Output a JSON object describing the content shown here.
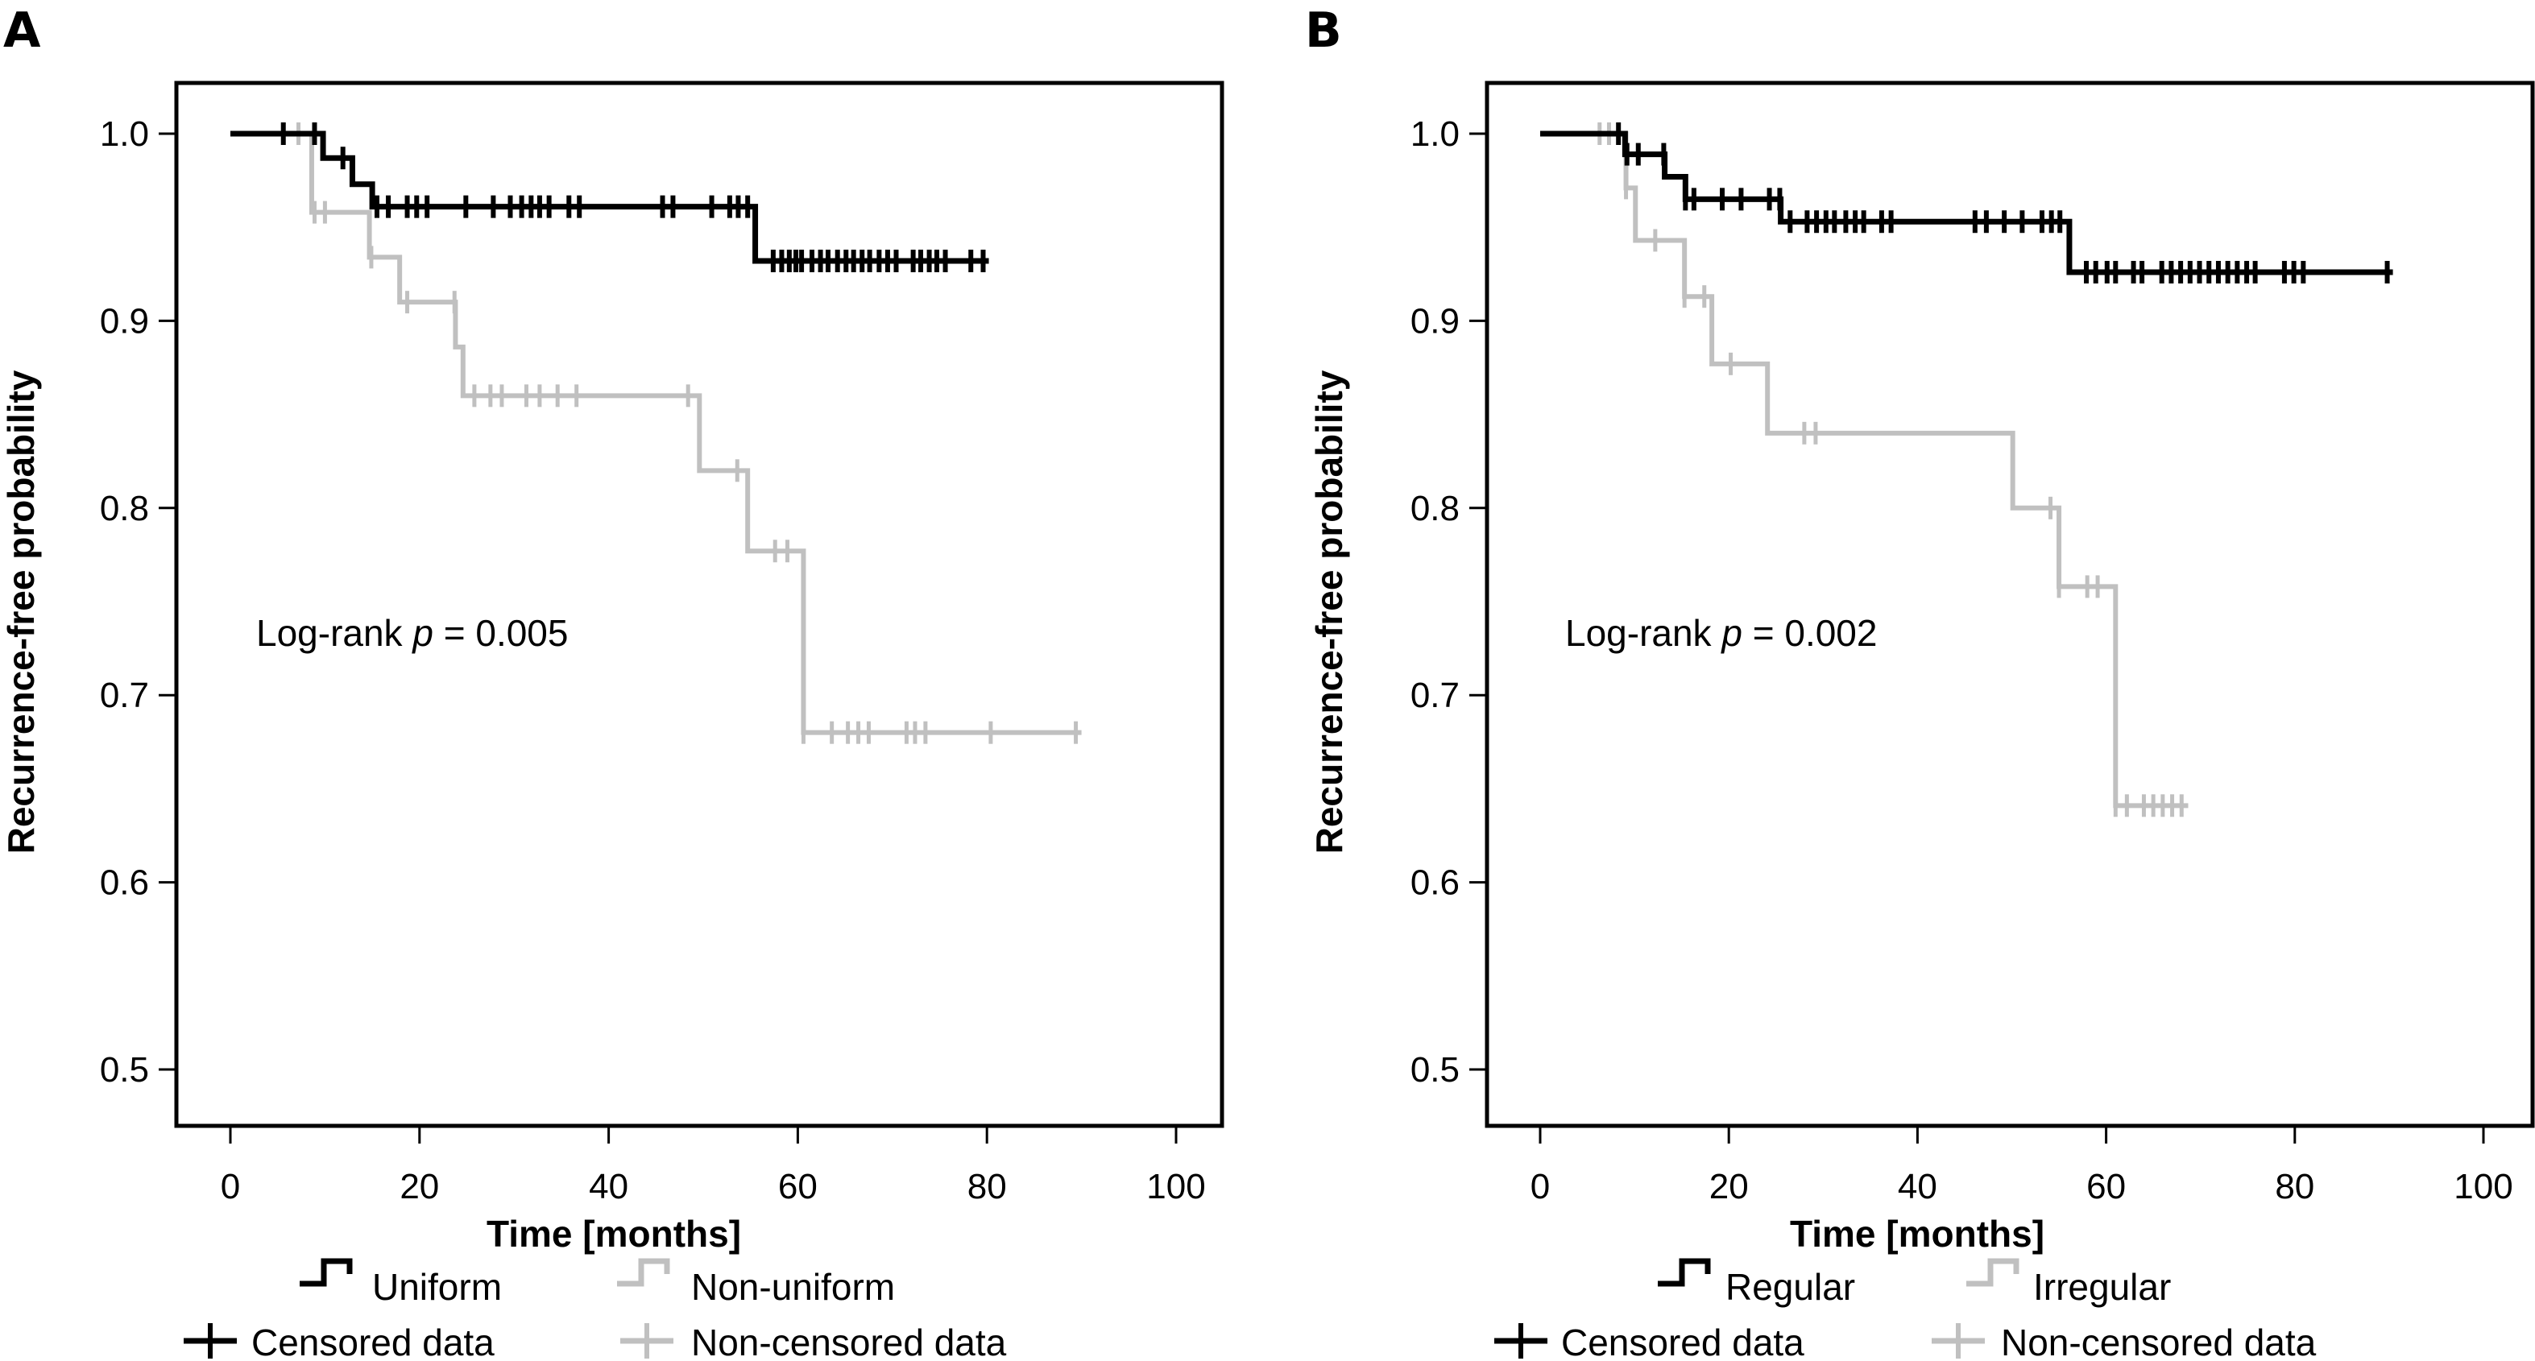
{
  "figure": {
    "panels": [
      "A",
      "B"
    ]
  },
  "chart_data": [
    {
      "type": "line",
      "subtype": "kaplan-meier",
      "panel_label": "A",
      "title": "",
      "xlabel": "Time [months]",
      "ylabel": "Recurrence-free probability",
      "xlim": [
        0,
        100
      ],
      "ylim": [
        0.5,
        1.0
      ],
      "xticks": [
        0,
        20,
        40,
        60,
        80,
        100
      ],
      "xtick_labels": [
        "0",
        "20",
        "40",
        "60",
        "80",
        "100"
      ],
      "yticks": [
        0.5,
        0.6,
        0.7,
        0.8,
        0.9,
        1.0
      ],
      "ytick_labels": [
        "0.5",
        "0.6",
        "0.7",
        "0.8",
        "0.9",
        "1.0"
      ],
      "grid": false,
      "annotation": {
        "prefix": "Log-rank ",
        "italic": "p",
        "suffix": " = 0.005"
      },
      "legend_position": "bottom",
      "legend": [
        {
          "label": "Uniform",
          "kind": "step",
          "series": 0
        },
        {
          "label": "Non-uniform",
          "kind": "step",
          "series": 1
        },
        {
          "label": "Censored data",
          "kind": "plus",
          "series": 0
        },
        {
          "label": "Non-censored data",
          "kind": "plus",
          "series": 1
        }
      ],
      "series": [
        {
          "name": "Uniform",
          "color": "#000000",
          "steps": [
            [
              0,
              1.0
            ],
            [
              9.8,
              0.987
            ],
            [
              12.9,
              0.973
            ],
            [
              15.0,
              0.961
            ],
            [
              55.5,
              0.932
            ]
          ],
          "end": 80.2,
          "censored": [
            5.6,
            8.9,
            11.9,
            15.5,
            16.7,
            18.7,
            19.7,
            20.8,
            24.9,
            27.8,
            29.6,
            30.8,
            31.8,
            32.7,
            33.7,
            35.8,
            36.9,
            45.7,
            46.8,
            50.9,
            52.8,
            53.7,
            54.7,
            57.4,
            58.3,
            59.1,
            59.8,
            60.4,
            61.5,
            62.4,
            63.2,
            64.2,
            65.1,
            65.9,
            66.8,
            67.6,
            68.6,
            69.5,
            70.4,
            72.2,
            73.0,
            73.9,
            74.7,
            75.6,
            78.3,
            79.6
          ]
        },
        {
          "name": "Non-uniform",
          "color": "#c0c0c0",
          "steps": [
            [
              0,
              1.0
            ],
            [
              8.6,
              0.958
            ],
            [
              14.7,
              0.934
            ],
            [
              17.9,
              0.91
            ],
            [
              23.8,
              0.886
            ],
            [
              24.6,
              0.86
            ],
            [
              49.6,
              0.82
            ],
            [
              54.7,
              0.777
            ],
            [
              60.6,
              0.68
            ]
          ],
          "end": 90.0,
          "censored": [
            7.2,
            8.9,
            10.0,
            14.9,
            18.7,
            23.7,
            25.8,
            27.5,
            28.7,
            31.3,
            32.7,
            34.6,
            36.6,
            48.4,
            53.6,
            57.6,
            58.9,
            60.6,
            63.6,
            65.3,
            66.4,
            67.5,
            71.5,
            72.4,
            73.5,
            80.4,
            89.4
          ]
        }
      ]
    },
    {
      "type": "line",
      "subtype": "kaplan-meier",
      "panel_label": "B",
      "title": "",
      "xlabel": "Time [months]",
      "ylabel": "Recurrence-free probability",
      "xlim": [
        0,
        100
      ],
      "ylim": [
        0.5,
        1.0
      ],
      "xticks": [
        0,
        20,
        40,
        60,
        80,
        100
      ],
      "xtick_labels": [
        "0",
        "20",
        "40",
        "60",
        "80",
        "100"
      ],
      "yticks": [
        0.5,
        0.6,
        0.7,
        0.8,
        0.9,
        1.0
      ],
      "ytick_labels": [
        "0.5",
        "0.6",
        "0.7",
        "0.8",
        "0.9",
        "1.0"
      ],
      "grid": false,
      "annotation": {
        "prefix": "Log-rank ",
        "italic": "p",
        "suffix": " = 0.002"
      },
      "legend_position": "bottom",
      "legend": [
        {
          "label": "Regular",
          "kind": "step",
          "series": 0
        },
        {
          "label": "Irregular",
          "kind": "step",
          "series": 1
        },
        {
          "label": "Censored data",
          "kind": "plus",
          "series": 0
        },
        {
          "label": "Non-censored data",
          "kind": "plus",
          "series": 1
        }
      ],
      "series": [
        {
          "name": "Regular",
          "color": "#000000",
          "steps": [
            [
              0,
              1.0
            ],
            [
              9.0,
              0.989
            ],
            [
              13.2,
              0.977
            ],
            [
              15.4,
              0.965
            ],
            [
              25.5,
              0.953
            ],
            [
              56.1,
              0.926
            ]
          ],
          "end": 90.4,
          "censored": [
            8.3,
            9.2,
            10.4,
            13.1,
            15.4,
            16.3,
            19.3,
            21.3,
            24.3,
            25.4,
            26.5,
            28.3,
            29.3,
            30.3,
            31.2,
            32.4,
            33.4,
            34.3,
            36.2,
            37.2,
            46.1,
            47.3,
            49.2,
            51.1,
            53.2,
            54.2,
            55.1,
            57.9,
            58.9,
            60.1,
            61.0,
            62.9,
            63.8,
            65.9,
            66.9,
            67.9,
            68.9,
            69.9,
            70.9,
            71.9,
            72.9,
            73.9,
            74.9,
            75.8,
            78.9,
            79.9,
            80.9,
            89.8
          ]
        },
        {
          "name": "Irregular",
          "color": "#c0c0c0",
          "steps": [
            [
              0,
              1.0
            ],
            [
              9.1,
              0.971
            ],
            [
              10.1,
              0.943
            ],
            [
              15.3,
              0.913
            ],
            [
              18.2,
              0.877
            ],
            [
              24.1,
              0.84
            ],
            [
              50.1,
              0.8
            ],
            [
              55.0,
              0.758
            ],
            [
              61.0,
              0.641
            ]
          ],
          "end": 68.7,
          "censored": [
            6.3,
            7.3,
            9.1,
            12.2,
            15.3,
            17.4,
            20.2,
            28.0,
            29.2,
            54.1,
            55.0,
            58.0,
            59.1,
            61.0,
            62.2,
            64.0,
            65.0,
            66.0,
            67.0,
            68.0
          ]
        }
      ]
    }
  ]
}
